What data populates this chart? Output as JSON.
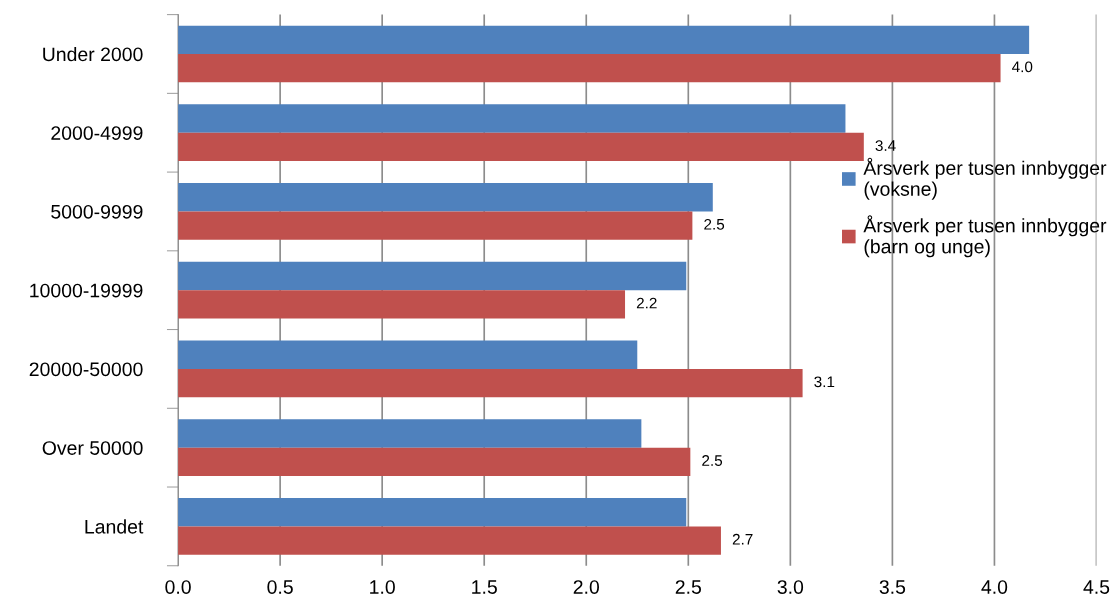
{
  "chart_data": {
    "type": "bar",
    "orientation": "horizontal",
    "categories": [
      "Under 2000",
      "2000-4999",
      "5000-9999",
      "10000-19999",
      "20000-50000",
      "Over 50000",
      "Landet"
    ],
    "series": [
      {
        "name": "Årsverk per tusen innbygger\n(voksne)",
        "color": "#4f81bd",
        "values": [
          4.17,
          3.27,
          2.62,
          2.49,
          2.25,
          2.27,
          2.49
        ]
      },
      {
        "name": "Årsverk per tusen innbygger\n(barn og unge)",
        "color": "#c0504d",
        "values": [
          4.03,
          3.36,
          2.52,
          2.19,
          3.06,
          2.51,
          2.66
        ],
        "value_labels": [
          "4.0",
          "3.4",
          "2.5",
          "2.2",
          "3.1",
          "2.5",
          "2.7"
        ]
      }
    ],
    "xlim": [
      0,
      4.5
    ],
    "xticks": [
      {
        "value": 0,
        "label": "0.0"
      },
      {
        "value": 0.5,
        "label": "0.5"
      },
      {
        "value": 1,
        "label": "1.0"
      },
      {
        "value": 1.5,
        "label": "1.5"
      },
      {
        "value": 2,
        "label": "2.0"
      },
      {
        "value": 2.5,
        "label": "2.5"
      },
      {
        "value": 3,
        "label": "3.0"
      },
      {
        "value": 3.5,
        "label": "3.5"
      },
      {
        "value": 4,
        "label": "4.0"
      },
      {
        "value": 4.5,
        "label": "4.5"
      }
    ],
    "grid": "x",
    "legend": "right"
  }
}
